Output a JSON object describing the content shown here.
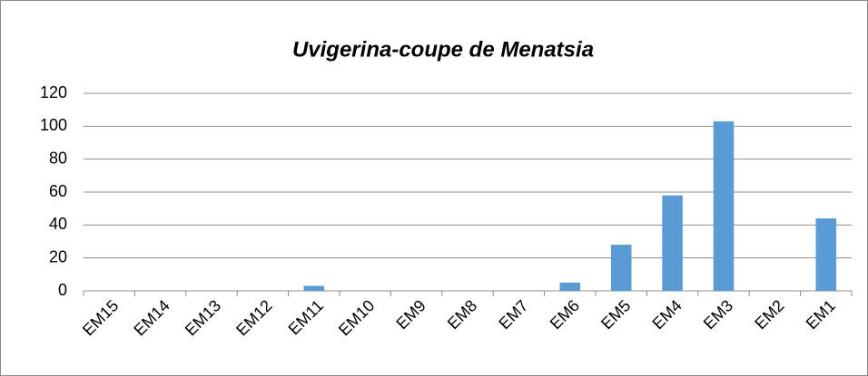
{
  "chart_data": {
    "type": "bar",
    "title": "Uvigerina-coupe de Menatsia",
    "categories": [
      "EM15",
      "EM14",
      "EM13",
      "EM12",
      "EM11",
      "EM10",
      "EM9",
      "EM8",
      "EM7",
      "EM6",
      "EM5",
      "EM4",
      "EM3",
      "EM2",
      "EM1"
    ],
    "values": [
      0,
      0,
      0,
      0,
      3,
      0,
      0,
      0,
      0,
      5,
      28,
      58,
      103,
      0,
      44
    ],
    "color": "#5b9bd5",
    "ylim": [
      0,
      120
    ],
    "yticks": [
      0,
      20,
      40,
      60,
      80,
      100,
      120
    ],
    "grid": true
  }
}
